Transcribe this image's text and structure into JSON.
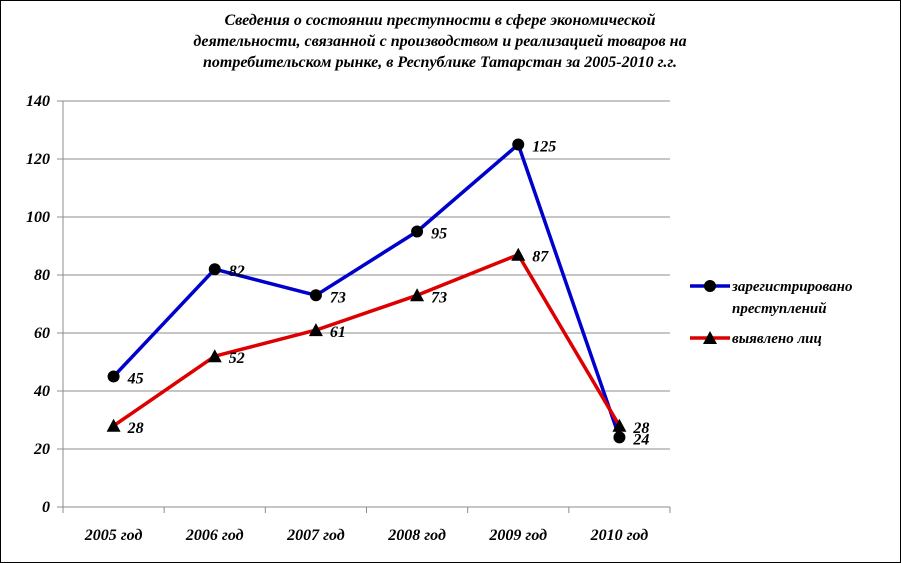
{
  "chart_data": {
    "type": "line",
    "title_lines": [
      "Сведения о состоянии преступности в сфере экономической",
      "деятельности, связанной с производством и реализацией товаров на",
      "потребительском рынке, в Республике Татарстан за 2005-2010 г.г."
    ],
    "categories": [
      "2005 год",
      "2006 год",
      "2007 год",
      "2008 год",
      "2009 год",
      "2010 год"
    ],
    "ylim": [
      0,
      140
    ],
    "yticks": [
      0,
      20,
      40,
      60,
      80,
      100,
      120,
      140
    ],
    "grid": true,
    "legend_position": "right",
    "series": [
      {
        "name_lines": [
          "зарегистрировано",
          "преступлений"
        ],
        "values": [
          45,
          82,
          73,
          95,
          125,
          24
        ],
        "color": "#0000cc",
        "marker": "circle"
      },
      {
        "name_lines": [
          "выявлено лиц"
        ],
        "values": [
          28,
          52,
          61,
          73,
          87,
          28
        ],
        "color": "#dd0000",
        "marker": "triangle"
      }
    ]
  }
}
